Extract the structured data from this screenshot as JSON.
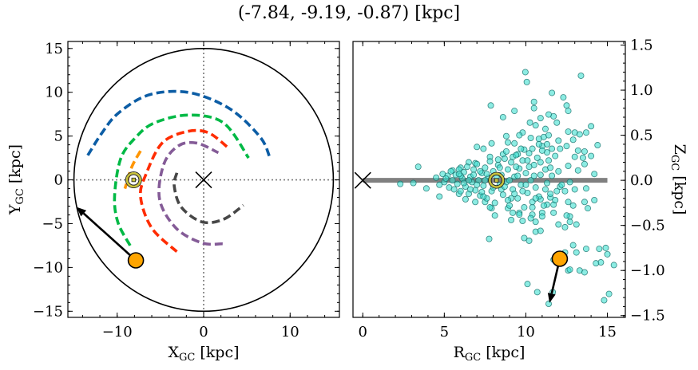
{
  "title": "(-7.84, -9.19, -0.87) [kpc]",
  "colors": {
    "blue": "#0C5DA5",
    "green": "#00B945",
    "orange": "#FF9500",
    "red": "#FF2C00",
    "purple": "#845B97",
    "darkgrey": "#474747",
    "scatter_fill": "#40E0D0",
    "scatter_edge": "#146b66",
    "sun_ring": "#c9c23a",
    "marker": "#FFA500",
    "band": "#808080"
  },
  "chart_data": [
    {
      "type": "line",
      "panel": "left",
      "xlabel": "X",
      "xlabel_sub": "GC",
      "xlabel_unit": " [kpc]",
      "ylabel": "Y",
      "ylabel_sub": "GC",
      "ylabel_unit": " [kpc]",
      "xlim": [
        -15.7,
        15.7
      ],
      "ylim": [
        -15.7,
        15.8
      ],
      "xticks": [
        -10,
        0,
        10
      ],
      "xtick_labels": [
        "−10",
        "0",
        "10"
      ],
      "yticks": [
        -15,
        -10,
        -5,
        0,
        5,
        10,
        15
      ],
      "ytick_labels": [
        "−15",
        "−10",
        "−5",
        "0",
        "5",
        "10",
        "15"
      ],
      "grid": false,
      "boundary_circle_radius": 15,
      "crosshair_lines": {
        "x": 0,
        "y": 0,
        "style": "dotted"
      },
      "arms": [
        {
          "color": "blue",
          "points": [
            [
              -13.4,
              2.8
            ],
            [
              -11.8,
              5.3
            ],
            [
              -10,
              7.5
            ],
            [
              -6.9,
              9.5
            ],
            [
              -3.5,
              10.1
            ],
            [
              -0.2,
              9.6
            ],
            [
              3.5,
              7.8
            ],
            [
              6.6,
              4.8
            ],
            [
              7.6,
              2.7
            ]
          ]
        },
        {
          "color": "green",
          "points": [
            [
              -8.5,
              -7.5
            ],
            [
              -9.9,
              -4.9
            ],
            [
              -10.3,
              -1.9
            ],
            [
              -9.6,
              2.4
            ],
            [
              -7.9,
              4.8
            ],
            [
              -5.7,
              6.5
            ],
            [
              -1.7,
              7.4
            ],
            [
              2.3,
              6.5
            ],
            [
              5.2,
              2.5
            ]
          ]
        },
        {
          "color": "orange",
          "points": [
            [
              -7.3,
              3.3
            ],
            [
              -8.3,
              1.5
            ],
            [
              -9.1,
              -1.0
            ]
          ]
        },
        {
          "color": "red",
          "points": [
            [
              -3.1,
              -8.2
            ],
            [
              -6,
              -5.5
            ],
            [
              -7.3,
              -1.9
            ],
            [
              -6.6,
              0.8
            ],
            [
              -4.8,
              4.2
            ],
            [
              -2,
              5.5
            ],
            [
              0.5,
              5.4
            ],
            [
              2.8,
              3.7
            ]
          ]
        },
        {
          "color": "purple",
          "points": [
            [
              2.2,
              -7.3
            ],
            [
              -0.2,
              -7.2
            ],
            [
              -3.2,
              -5.5
            ],
            [
              -5.1,
              -2.2
            ],
            [
              -4.6,
              1.8
            ],
            [
              -2.9,
              3.9
            ],
            [
              -0.8,
              4.2
            ],
            [
              1.7,
              3.1
            ]
          ]
        },
        {
          "color": "darkgrey",
          "points": [
            [
              -3.1,
              0.8
            ],
            [
              -3.4,
              -0.7
            ],
            [
              -2.6,
              -3.1
            ],
            [
              -0.2,
              -4.8
            ],
            [
              2.3,
              -4.5
            ],
            [
              4.6,
              -2.9
            ]
          ]
        }
      ],
      "galactic_center": [
        0,
        0
      ],
      "sun": [
        -8.1,
        0
      ],
      "object": [
        -7.84,
        -9.19
      ],
      "arrow_to": [
        -14.7,
        -3.1
      ]
    },
    {
      "type": "scatter",
      "panel": "right",
      "xlabel": "R",
      "xlabel_sub": "GC",
      "xlabel_unit": " [kpc]",
      "ylabel": "Z",
      "ylabel_sub": "GC",
      "ylabel_unit": " [kpc]",
      "ylabel_position": "right",
      "xlim": [
        -0.6,
        16.1
      ],
      "ylim": [
        -1.52,
        1.54
      ],
      "xticks": [
        0,
        5,
        10,
        15
      ],
      "xtick_labels": [
        "0",
        "5",
        "10",
        "15"
      ],
      "yticks": [
        -1.5,
        -1.0,
        -0.5,
        0.0,
        0.5,
        1.0,
        1.5
      ],
      "ytick_labels": [
        "−1.5",
        "−1.0",
        "−0.5",
        "0.0",
        "0.5",
        "1.0",
        "1.5"
      ],
      "grid": false,
      "disk_band": {
        "R": [
          0,
          15
        ],
        "Z": 0
      },
      "galactic_center": [
        0,
        0
      ],
      "sun": [
        8.2,
        0
      ],
      "object": [
        12.08,
        -0.87
      ],
      "arrow_to": [
        11.45,
        -1.36
      ],
      "points": [
        [
          9.97,
          1.2
        ],
        [
          10.06,
          1.09
        ],
        [
          13.38,
          1.16
        ],
        [
          11.6,
          0.97
        ],
        [
          12.3,
          0.92
        ],
        [
          10.5,
          0.87
        ],
        [
          7.85,
          0.83
        ],
        [
          12.5,
          0.83
        ],
        [
          10.5,
          0.8
        ],
        [
          9.3,
          0.77
        ],
        [
          12.6,
          0.77
        ],
        [
          8.6,
          0.7
        ],
        [
          10.9,
          0.69
        ],
        [
          11.7,
          0.71
        ],
        [
          10.25,
          0.64
        ],
        [
          11.4,
          0.73
        ],
        [
          14.0,
          0.6
        ],
        [
          11.9,
          0.64
        ],
        [
          10.6,
          0.61
        ],
        [
          11.2,
          0.57
        ],
        [
          13.7,
          0.53
        ],
        [
          9.8,
          0.53
        ],
        [
          8.8,
          0.49
        ],
        [
          14.4,
          0.39
        ],
        [
          14.0,
          0.27
        ],
        [
          7.0,
          0.37
        ],
        [
          7.4,
          0.35
        ],
        [
          7.9,
          0.41
        ],
        [
          3.4,
          0.15
        ],
        [
          2.3,
          -0.04
        ],
        [
          3.1,
          -0.03
        ],
        [
          3.9,
          -0.09
        ],
        [
          4.7,
          -0.18
        ],
        [
          14.2,
          0.07
        ],
        [
          14.2,
          -0.22
        ],
        [
          13.8,
          -0.31
        ],
        [
          13.7,
          -0.09
        ],
        [
          13.6,
          -0.24
        ],
        [
          7.75,
          -0.65
        ],
        [
          9.9,
          -0.64
        ],
        [
          10.2,
          -0.67
        ],
        [
          10.6,
          -0.57
        ],
        [
          10.9,
          -0.56
        ],
        [
          12.0,
          -0.49
        ],
        [
          12.7,
          -0.46
        ],
        [
          13.1,
          -0.49
        ],
        [
          12.9,
          -0.72
        ],
        [
          13.1,
          -0.8
        ],
        [
          13.7,
          -0.76
        ],
        [
          14.5,
          -0.76
        ],
        [
          14.9,
          -0.75
        ],
        [
          15.0,
          -0.82
        ],
        [
          15.4,
          -0.94
        ],
        [
          14.6,
          -0.91
        ],
        [
          14.3,
          -0.92
        ],
        [
          13.3,
          -1.0
        ],
        [
          13.6,
          -1.02
        ],
        [
          12.6,
          -1.0
        ],
        [
          12.7,
          -0.99
        ],
        [
          11.7,
          -0.88
        ],
        [
          12.4,
          -0.8
        ],
        [
          10.1,
          -1.15
        ],
        [
          10.7,
          -1.24
        ],
        [
          11.65,
          -1.24
        ],
        [
          11.4,
          -1.37
        ],
        [
          14.8,
          -1.33
        ],
        [
          15.1,
          -1.26
        ],
        [
          12.7,
          -0.4
        ],
        [
          12.4,
          -0.52
        ],
        [
          9.1,
          -0.44
        ],
        [
          10.6,
          -0.46
        ],
        [
          10.4,
          -0.38
        ],
        [
          9.8,
          -0.45
        ],
        [
          11.7,
          -0.36
        ],
        [
          12.5,
          -0.39
        ],
        [
          8.9,
          0.42
        ],
        [
          9.3,
          0.41
        ],
        [
          9.6,
          0.5
        ],
        [
          10.3,
          0.47
        ],
        [
          10.8,
          0.46
        ],
        [
          11.1,
          0.48
        ],
        [
          11.4,
          0.5
        ],
        [
          12.0,
          0.44
        ],
        [
          12.6,
          0.54
        ],
        [
          13.0,
          0.53
        ],
        [
          13.3,
          0.51
        ],
        [
          12.9,
          0.45
        ],
        [
          12.5,
          0.38
        ],
        [
          12.1,
          0.35
        ],
        [
          13.2,
          0.33
        ],
        [
          13.6,
          0.32
        ],
        [
          13.5,
          0.25
        ],
        [
          13.0,
          0.26
        ],
        [
          13.6,
          0.18
        ],
        [
          13.2,
          0.11
        ],
        [
          12.6,
          0.16
        ],
        [
          11.6,
          0.35
        ],
        [
          11.3,
          0.31
        ],
        [
          11.0,
          0.38
        ],
        [
          10.4,
          0.35
        ],
        [
          9.9,
          0.34
        ],
        [
          9.5,
          0.29
        ],
        [
          9.2,
          0.26
        ],
        [
          8.6,
          0.29
        ],
        [
          8.3,
          0.23
        ],
        [
          7.8,
          0.26
        ],
        [
          6.9,
          0.19
        ],
        [
          6.5,
          0.2
        ],
        [
          6.0,
          0.14
        ],
        [
          5.5,
          0.11
        ],
        [
          5.9,
          -0.15
        ],
        [
          6.3,
          -0.21
        ],
        [
          6.9,
          -0.24
        ],
        [
          7.5,
          -0.24
        ],
        [
          7.9,
          -0.31
        ],
        [
          8.1,
          -0.39
        ],
        [
          8.9,
          -0.31
        ],
        [
          9.2,
          -0.36
        ],
        [
          9.6,
          -0.36
        ],
        [
          10.4,
          -0.3
        ],
        [
          11.0,
          -0.36
        ],
        [
          11.3,
          -0.27
        ],
        [
          11.7,
          -0.27
        ],
        [
          11.9,
          -0.12
        ],
        [
          12.4,
          -0.12
        ],
        [
          12.6,
          -0.24
        ],
        [
          12.9,
          -0.28
        ],
        [
          13.0,
          -0.1
        ],
        [
          12.7,
          -0.02
        ],
        [
          12.1,
          -0.07
        ],
        [
          11.5,
          -0.19
        ],
        [
          10.9,
          -0.21
        ],
        [
          10.3,
          -0.42
        ],
        [
          4.5,
          0.03
        ],
        [
          4.7,
          -0.05
        ],
        [
          4.9,
          0.07
        ],
        [
          5.0,
          -0.02
        ],
        [
          5.2,
          0.05
        ],
        [
          5.3,
          -0.08
        ],
        [
          5.4,
          0.1
        ],
        [
          5.5,
          0.0
        ],
        [
          5.6,
          -0.1
        ],
        [
          5.7,
          0.06
        ],
        [
          5.8,
          -0.04
        ],
        [
          5.9,
          0.12
        ],
        [
          6.0,
          -0.12
        ],
        [
          6.1,
          0.02
        ],
        [
          6.2,
          0.09
        ],
        [
          6.3,
          -0.07
        ],
        [
          6.4,
          0.15
        ],
        [
          6.5,
          -0.15
        ],
        [
          6.6,
          0.04
        ],
        [
          6.7,
          -0.02
        ],
        [
          6.8,
          0.12
        ],
        [
          6.9,
          -0.11
        ],
        [
          7.0,
          0.18
        ],
        [
          7.1,
          0.0
        ],
        [
          7.2,
          -0.17
        ],
        [
          7.3,
          0.08
        ],
        [
          7.4,
          -0.06
        ],
        [
          7.5,
          0.14
        ],
        [
          7.6,
          -0.2
        ],
        [
          7.7,
          0.03
        ],
        [
          7.8,
          0.21
        ],
        [
          7.9,
          -0.12
        ],
        [
          8.0,
          0.1
        ],
        [
          8.1,
          -0.25
        ],
        [
          8.3,
          0.17
        ],
        [
          8.4,
          -0.05
        ],
        [
          8.5,
          0.06
        ],
        [
          8.6,
          -0.16
        ],
        [
          8.7,
          0.24
        ],
        [
          8.8,
          -0.02
        ],
        [
          8.9,
          0.12
        ],
        [
          9.0,
          -0.28
        ],
        [
          9.1,
          0.2
        ],
        [
          9.2,
          -0.1
        ],
        [
          9.3,
          0.04
        ],
        [
          9.4,
          0.28
        ],
        [
          9.5,
          -0.2
        ],
        [
          9.6,
          0.13
        ],
        [
          9.7,
          -0.05
        ],
        [
          9.8,
          0.22
        ],
        [
          9.9,
          -0.3
        ],
        [
          10.0,
          0.08
        ],
        [
          10.1,
          -0.14
        ],
        [
          10.2,
          0.3
        ],
        [
          10.3,
          0.0
        ],
        [
          10.4,
          -0.24
        ],
        [
          10.5,
          0.17
        ],
        [
          10.6,
          -0.08
        ],
        [
          10.7,
          0.25
        ],
        [
          10.8,
          -0.18
        ],
        [
          10.9,
          0.06
        ],
        [
          11.0,
          0.33
        ],
        [
          11.1,
          -0.28
        ],
        [
          11.2,
          0.12
        ],
        [
          11.3,
          -0.03
        ],
        [
          11.4,
          0.22
        ],
        [
          11.5,
          -0.15
        ],
        [
          11.6,
          0.05
        ],
        [
          11.8,
          0.27
        ],
        [
          11.8,
          -0.22
        ],
        [
          12.0,
          0.1
        ],
        [
          12.2,
          -0.05
        ],
        [
          6.0,
          0.05
        ],
        [
          6.5,
          0.0
        ],
        [
          7.0,
          -0.05
        ],
        [
          7.5,
          0.0
        ],
        [
          8.0,
          -0.08
        ],
        [
          8.5,
          -0.1
        ],
        [
          9.0,
          0.0
        ],
        [
          9.5,
          0.05
        ],
        [
          10.0,
          -0.05
        ],
        [
          10.5,
          0.05
        ],
        [
          7.3,
          -0.13
        ],
        [
          8.2,
          0.04
        ],
        [
          9.3,
          -0.15
        ],
        [
          10.2,
          0.15
        ],
        [
          8.8,
          0.32
        ],
        [
          9.6,
          -0.38
        ],
        [
          7.8,
          -0.3
        ],
        [
          10.8,
          0.4
        ],
        [
          11.3,
          0.4
        ],
        [
          11.0,
          -0.4
        ],
        [
          6.2,
          -0.03
        ],
        [
          6.8,
          0.06
        ],
        [
          7.2,
          0.1
        ],
        [
          7.6,
          0.07
        ],
        [
          8.4,
          0.14
        ],
        [
          8.7,
          -0.07
        ],
        [
          9.1,
          -0.2
        ],
        [
          9.4,
          0.15
        ],
        [
          9.8,
          -0.12
        ],
        [
          10.1,
          0.22
        ],
        [
          10.6,
          -0.2
        ],
        [
          11.2,
          -0.1
        ],
        [
          11.5,
          0.14
        ],
        [
          10.9,
          0.2
        ],
        [
          9.7,
          0.35
        ],
        [
          8.9,
          -0.22
        ],
        [
          7.4,
          -0.18
        ],
        [
          6.6,
          -0.1
        ],
        [
          5.9,
          0.07
        ],
        [
          5.1,
          0.02
        ]
      ]
    }
  ]
}
